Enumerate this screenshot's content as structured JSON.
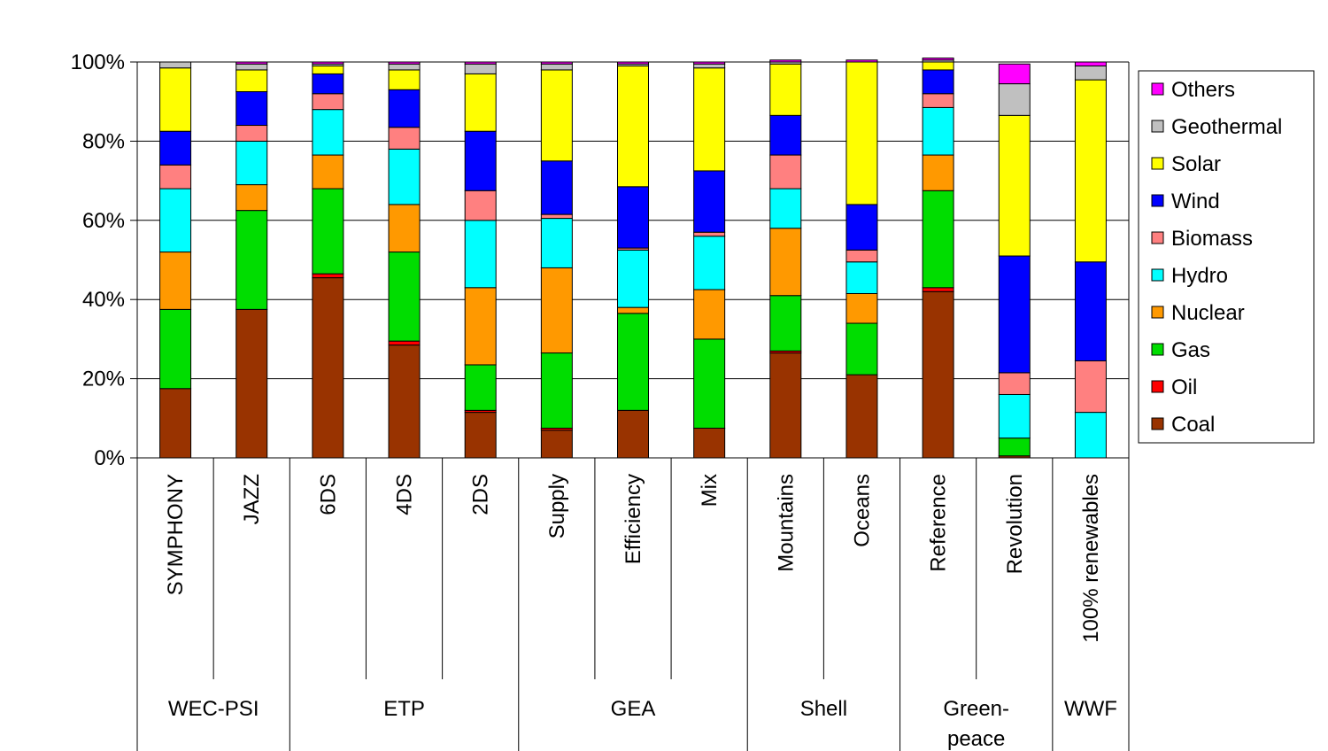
{
  "chart_data": {
    "type": "bar",
    "stacked": true,
    "percent": true,
    "ylim": [
      0,
      100
    ],
    "yticks": [
      "0%",
      "20%",
      "40%",
      "60%",
      "80%",
      "100%"
    ],
    "grid": true,
    "legend_position": "right",
    "categories": [
      "SYMPHONY",
      "JAZZ",
      "6DS",
      "4DS",
      "2DS",
      "Supply",
      "Efficiency",
      "Mix",
      "Mountains",
      "Oceans",
      "Reference",
      "Revolution",
      "100% renewables"
    ],
    "groups": [
      {
        "label": [
          "WEC-PSI"
        ],
        "span": 2
      },
      {
        "label": [
          "ETP"
        ],
        "span": 3
      },
      {
        "label": [
          "GEA"
        ],
        "span": 3
      },
      {
        "label": [
          "Shell"
        ],
        "span": 2
      },
      {
        "label": [
          "Green-",
          "peace"
        ],
        "span": 2
      },
      {
        "label": [
          "WWF"
        ],
        "span": 1
      }
    ],
    "series": [
      {
        "name": "Coal",
        "color": "#993300",
        "values": [
          17.5,
          37.5,
          45.5,
          28.5,
          11.5,
          7,
          12,
          7.5,
          26.5,
          21,
          42,
          0.5,
          0
        ]
      },
      {
        "name": "Oil",
        "color": "#ff0000",
        "values": [
          0,
          0,
          1,
          1,
          0.5,
          0.5,
          0,
          0,
          0.5,
          0,
          1,
          0,
          0
        ]
      },
      {
        "name": "Gas",
        "color": "#00dd00",
        "values": [
          20,
          25,
          21.5,
          22.5,
          11.5,
          19,
          24.5,
          22.5,
          14,
          13,
          24.5,
          4.5,
          0
        ]
      },
      {
        "name": "Nuclear",
        "color": "#ff9900",
        "values": [
          14.5,
          6.5,
          8.5,
          12,
          19.5,
          21.5,
          1.5,
          12.5,
          17,
          7.5,
          9,
          0,
          0
        ]
      },
      {
        "name": "Hydro",
        "color": "#00ffff",
        "values": [
          16,
          11,
          11.5,
          14,
          17,
          12.5,
          14.5,
          13.5,
          10,
          8,
          12,
          11,
          11.5
        ]
      },
      {
        "name": "Biomass",
        "color": "#ff8080",
        "values": [
          6,
          4,
          4,
          5.5,
          7.5,
          1,
          0.5,
          1,
          8.5,
          3,
          3.5,
          5.5,
          13
        ]
      },
      {
        "name": "Wind",
        "color": "#0000ff",
        "values": [
          8.5,
          8.5,
          5,
          9.5,
          15,
          13.5,
          15.5,
          15.5,
          10,
          11.5,
          6,
          29.5,
          25
        ]
      },
      {
        "name": "Solar",
        "color": "#ffff00",
        "values": [
          16,
          5.5,
          2,
          5,
          14.5,
          23,
          30.5,
          26,
          13,
          36,
          2,
          35.5,
          46
        ]
      },
      {
        "name": "Geothermal",
        "color": "#c0c0c0",
        "values": [
          1.5,
          1.5,
          0.5,
          1.5,
          2.5,
          1.5,
          0.5,
          1,
          0.5,
          0,
          0.5,
          8,
          3.5
        ]
      },
      {
        "name": "Others",
        "color": "#ff00ff",
        "values": [
          0,
          0.5,
          0.5,
          0.5,
          0.5,
          0.5,
          0.5,
          0.5,
          0.5,
          0.5,
          0.5,
          5,
          1
        ]
      }
    ]
  }
}
